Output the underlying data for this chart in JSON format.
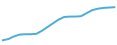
{
  "x": [
    0,
    1,
    2,
    3,
    4,
    5,
    6,
    7,
    8,
    9,
    10,
    11,
    12,
    13,
    14,
    15,
    16,
    17,
    18,
    19,
    20
  ],
  "y": [
    1.0,
    1.3,
    2.0,
    2.5,
    2.6,
    2.6,
    2.7,
    3.5,
    4.5,
    5.5,
    6.5,
    7.2,
    7.3,
    7.3,
    7.4,
    8.2,
    9.0,
    9.4,
    9.6,
    9.7,
    9.8
  ],
  "line_color": "#4aafd5",
  "line_width": 1.4,
  "background_color": "#ffffff",
  "xlim": [
    -0.3,
    20.3
  ],
  "ylim": [
    0.0,
    11.5
  ]
}
